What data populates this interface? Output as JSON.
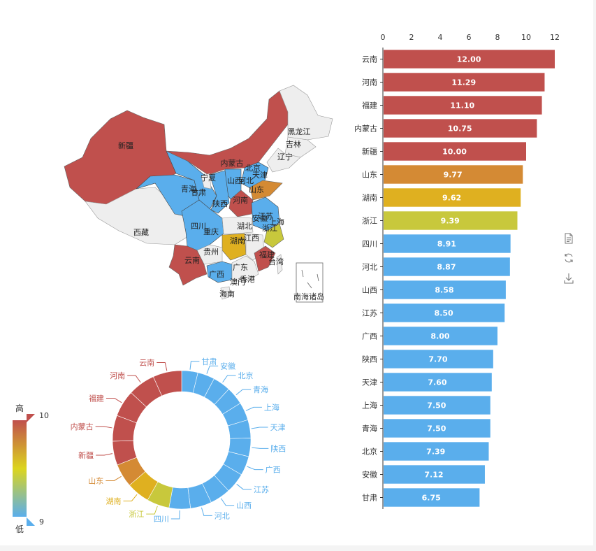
{
  "colors": {
    "red": "#c0504d",
    "orange": "#d48a34",
    "gold": "#dfb020",
    "yellowgreen": "#c8c83c",
    "blue": "#5aaeec",
    "gray": "#eeeeee"
  },
  "visual_map": {
    "high_label": "高",
    "low_label": "低",
    "max": "10",
    "min": "9"
  },
  "map": {
    "inset_label": "南海诸岛",
    "labels": [
      "新疆",
      "西藏",
      "青海",
      "甘肃",
      "宁夏",
      "内蒙古",
      "黑龙江",
      "吉林",
      "辽宁",
      "北京",
      "天津",
      "河北",
      "山西",
      "陕西",
      "山东",
      "河南",
      "四川",
      "重庆",
      "湖北",
      "安徽",
      "江苏",
      "上海",
      "浙江",
      "湖南",
      "江西",
      "贵州",
      "云南",
      "广西",
      "广东",
      "福建",
      "台湾",
      "香港",
      "澳门",
      "海南"
    ]
  },
  "toolbox": [
    "data-view-icon",
    "restore-icon",
    "save-image-icon"
  ],
  "chart_data": [
    {
      "type": "bar",
      "orientation": "horizontal",
      "categories": [
        "云南",
        "河南",
        "福建",
        "内蒙古",
        "新疆",
        "山东",
        "湖南",
        "浙江",
        "四川",
        "河北",
        "山西",
        "江苏",
        "广西",
        "陕西",
        "天津",
        "上海",
        "青海",
        "北京",
        "安徽",
        "甘肃"
      ],
      "values": [
        12.0,
        11.29,
        11.1,
        10.75,
        10.0,
        9.77,
        9.62,
        9.39,
        8.91,
        8.87,
        8.58,
        8.5,
        8.0,
        7.7,
        7.6,
        7.5,
        7.5,
        7.39,
        7.12,
        6.75
      ],
      "data_labels": [
        "12.00",
        "11.29",
        "11.10",
        "10.75",
        "10.00",
        "9.77",
        "9.62",
        "9.39",
        "8.91",
        "8.87",
        "8.58",
        "8.50",
        "8.00",
        "7.70",
        "7.60",
        "7.50",
        "7.50",
        "7.39",
        "7.12",
        "6.75"
      ],
      "xlim": [
        0,
        12
      ],
      "x_ticks": [
        "0",
        "2",
        "4",
        "6",
        "8",
        "10",
        "12"
      ],
      "grid": false
    },
    {
      "type": "pie",
      "style": "donut",
      "labels": [
        "甘肃",
        "安徽",
        "北京",
        "青海",
        "上海",
        "天津",
        "陕西",
        "广西",
        "江苏",
        "山西",
        "河北",
        "四川",
        "浙江",
        "湖南",
        "山东",
        "新疆",
        "内蒙古",
        "福建",
        "河南",
        "云南"
      ],
      "values": [
        6.75,
        7.12,
        7.39,
        7.5,
        7.5,
        7.6,
        7.7,
        8.0,
        8.5,
        8.58,
        8.87,
        8.91,
        9.39,
        9.62,
        9.77,
        10.0,
        10.75,
        11.1,
        11.29,
        12.0
      ]
    },
    {
      "type": "map",
      "region": "China provinces",
      "highlighted_values": {
        "云南": 12.0,
        "河南": 11.29,
        "福建": 11.1,
        "内蒙古": 10.75,
        "新疆": 10.0,
        "山东": 9.77,
        "湖南": 9.62,
        "浙江": 9.39,
        "四川": 8.91,
        "河北": 8.87,
        "山西": 8.58,
        "江苏": 8.5,
        "广西": 8.0,
        "陕西": 7.7,
        "天津": 7.6,
        "上海": 7.5,
        "青海": 7.5,
        "北京": 7.39,
        "安徽": 7.12,
        "甘肃": 6.75
      }
    }
  ]
}
